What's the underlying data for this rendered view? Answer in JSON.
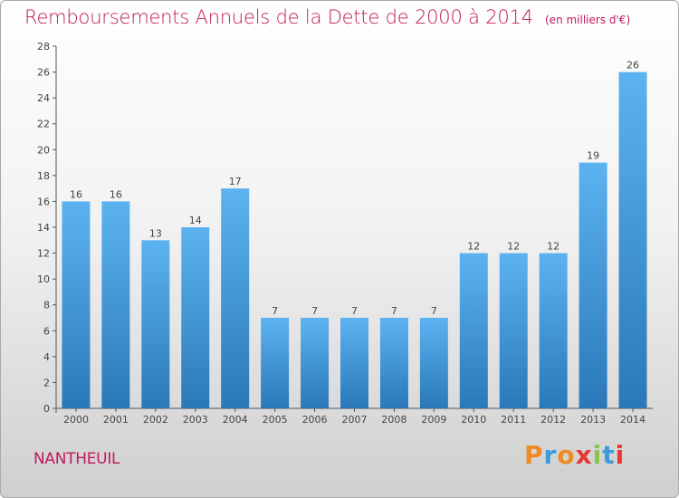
{
  "chart_data": {
    "type": "bar",
    "title": "Remboursements Annuels de la Dette de 2000 à 2014",
    "subtitle": "(en milliers d'€)",
    "categories": [
      "2000",
      "2001",
      "2002",
      "2003",
      "2004",
      "2005",
      "2006",
      "2007",
      "2008",
      "2009",
      "2010",
      "2011",
      "2012",
      "2013",
      "2014"
    ],
    "values": [
      16,
      16,
      13,
      14,
      17,
      7,
      7,
      7,
      7,
      7,
      12,
      12,
      12,
      19,
      26
    ],
    "ylim": [
      0,
      28
    ],
    "yticks": [
      0,
      2,
      4,
      6,
      8,
      10,
      12,
      14,
      16,
      18,
      20,
      22,
      24,
      26,
      28
    ],
    "grid": false,
    "bar_color_top": "#5cb3f0",
    "bar_color_bottom": "#2a78b8"
  },
  "footer": {
    "town": "NANTHEUIL",
    "brand": "Proxiti",
    "brand_colors": [
      "#f08a24",
      "#3a9bdc",
      "#f08a24",
      "#e53935",
      "#8bc34a",
      "#3a9bdc",
      "#e53935"
    ]
  }
}
